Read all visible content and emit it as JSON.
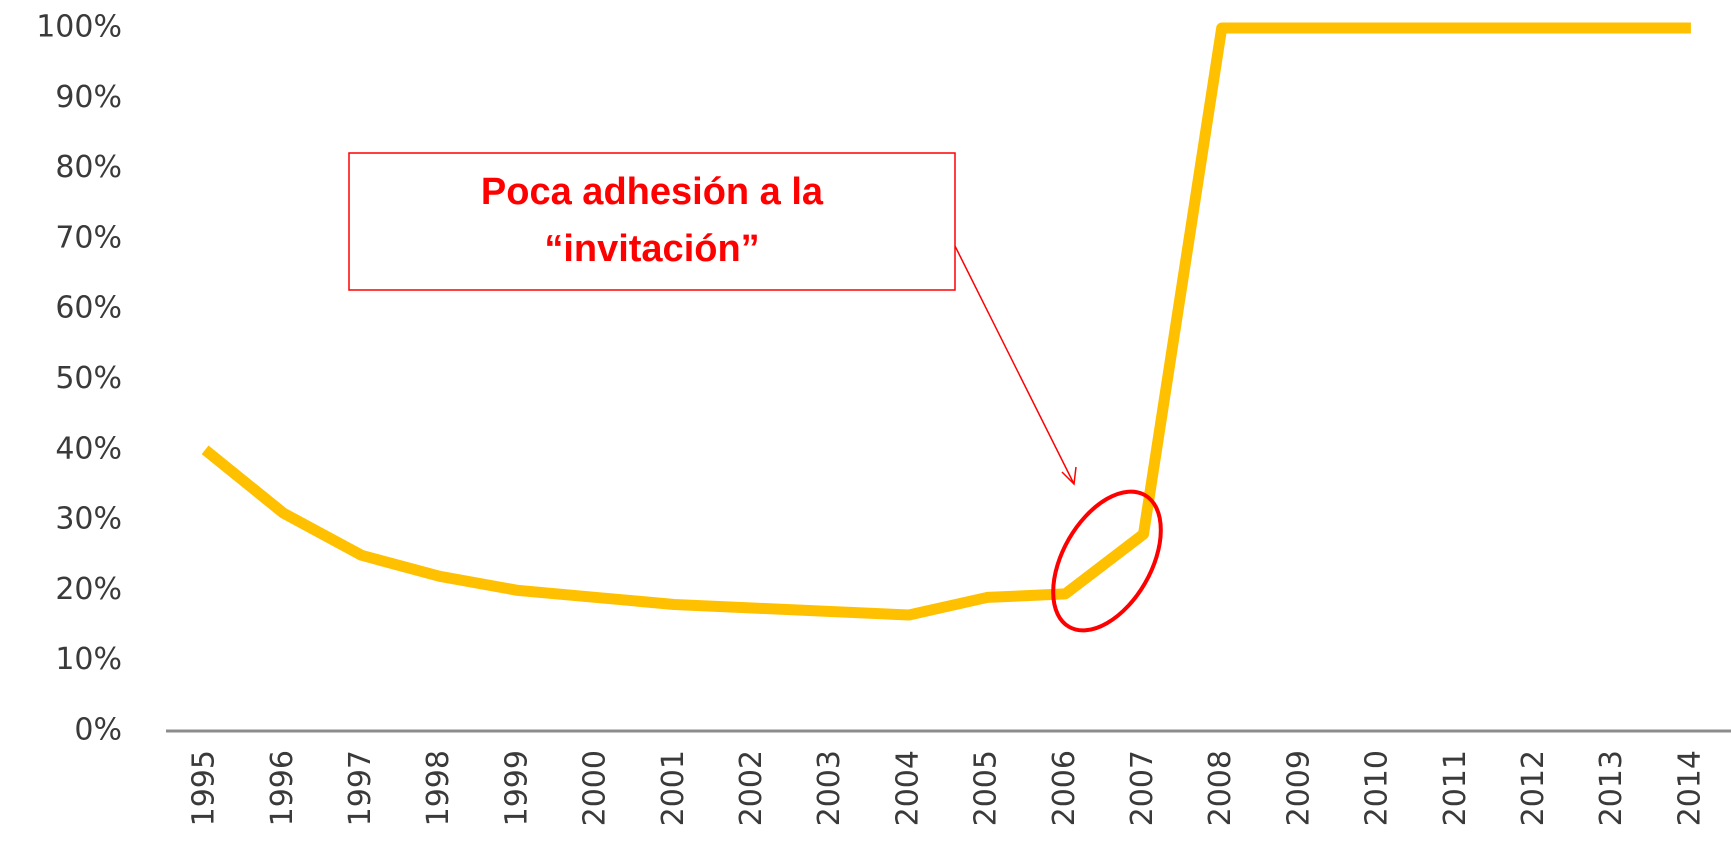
{
  "chart_data": {
    "type": "line",
    "categories": [
      "1995",
      "1996",
      "1997",
      "1998",
      "1999",
      "2000",
      "2001",
      "2002",
      "2003",
      "2004",
      "2005",
      "2006",
      "2007",
      "2008",
      "2009",
      "2010",
      "2011",
      "2012",
      "2013",
      "2014"
    ],
    "series": [
      {
        "color": "#ffc000",
        "values": [
          40,
          31,
          25,
          22,
          20,
          19,
          18,
          17.5,
          17,
          16.5,
          19,
          19.5,
          28,
          100,
          100,
          100,
          100,
          100,
          100,
          100
        ]
      }
    ],
    "ylim": [
      0,
      100
    ],
    "yticks": [
      {
        "value": 0,
        "label": "0%"
      },
      {
        "value": 10,
        "label": "10%"
      },
      {
        "value": 20,
        "label": "20%"
      },
      {
        "value": 30,
        "label": "30%"
      },
      {
        "value": 40,
        "label": "40%"
      },
      {
        "value": 50,
        "label": "50%"
      },
      {
        "value": 60,
        "label": "60%"
      },
      {
        "value": 70,
        "label": "70%"
      },
      {
        "value": 80,
        "label": "80%"
      },
      {
        "value": 90,
        "label": "90%"
      },
      {
        "value": 100,
        "label": "100%"
      }
    ],
    "grid": false,
    "annotation": [
      "Poca adhesión a la",
      "“invitación”"
    ]
  }
}
